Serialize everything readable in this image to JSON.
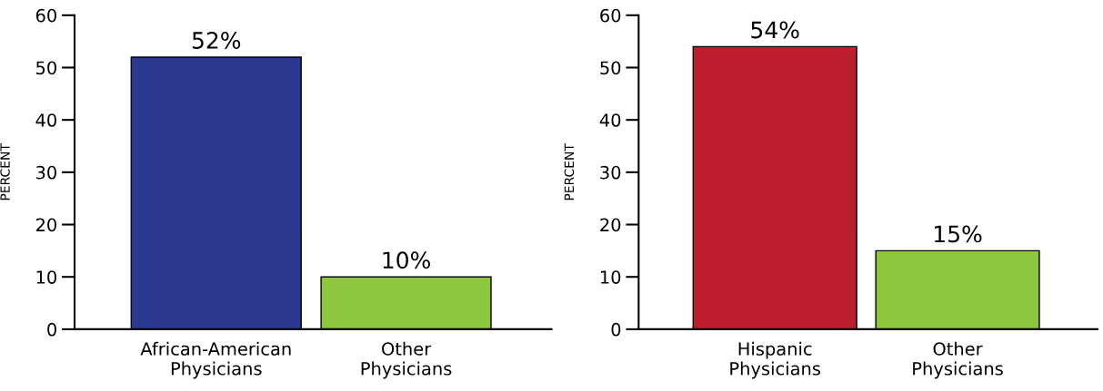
{
  "chart_data": [
    {
      "type": "bar",
      "ylabel": "PERCENT",
      "categories": [
        "African-American\nPhysicians",
        "Other\nPhysicians"
      ],
      "values": [
        52,
        10
      ],
      "colors": [
        "#2b3990",
        "#8dc63f"
      ],
      "value_labels": [
        "52%",
        "10%"
      ],
      "ylim": [
        0,
        60
      ],
      "yticks": [
        0,
        10,
        20,
        30,
        40,
        50,
        60
      ],
      "grid": false
    },
    {
      "type": "bar",
      "ylabel": "PERCENT",
      "categories": [
        "Hispanic\nPhysicians",
        "Other\nPhysicians"
      ],
      "values": [
        54,
        15
      ],
      "colors": [
        "#be1e2d",
        "#8dc63f"
      ],
      "value_labels": [
        "54%",
        "15%"
      ],
      "ylim": [
        0,
        60
      ],
      "yticks": [
        0,
        10,
        20,
        30,
        40,
        50,
        60
      ],
      "grid": false
    }
  ]
}
